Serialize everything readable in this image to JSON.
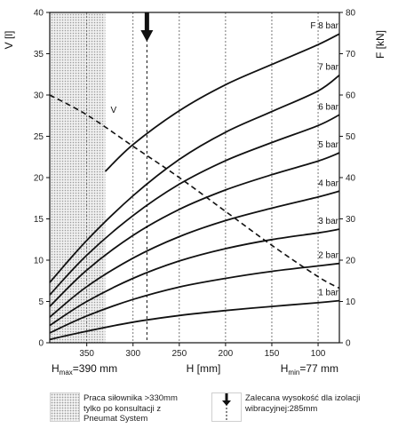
{
  "chart_data": {
    "type": "line",
    "x_reversed": true,
    "xlim": [
      390,
      77
    ],
    "x_ticks": [
      350,
      300,
      250,
      200,
      150,
      100
    ],
    "ylim_left": [
      0,
      40
    ],
    "y_ticks_left": [
      0,
      5,
      10,
      15,
      20,
      25,
      30,
      35,
      40
    ],
    "ylim_right": [
      0,
      80
    ],
    "y_ticks_right": [
      0,
      10,
      20,
      30,
      40,
      50,
      60,
      70,
      80
    ],
    "ylabel_left": "V [l]",
    "ylabel_right": "F [kN]",
    "xlabel": "H [mm]",
    "x_min_label": {
      "sym": "H",
      "sub": "max",
      "rest": "=390 mm"
    },
    "x_max_label": {
      "sym": "H",
      "sub": "min",
      "rest": "=77 mm"
    },
    "shaded_region_x": [
      390,
      330
    ],
    "recommended_height_mm": 285,
    "force_series": [
      {
        "name": "1 bar",
        "axis": "right",
        "x": [
          390,
          350,
          300,
          250,
          200,
          150,
          100,
          77
        ],
        "y": [
          0.8,
          2.8,
          5.0,
          6.6,
          7.8,
          8.8,
          9.7,
          10.2
        ]
      },
      {
        "name": "2 bar",
        "axis": "right",
        "x": [
          390,
          350,
          300,
          250,
          200,
          150,
          100,
          77
        ],
        "y": [
          2.4,
          6.5,
          10.5,
          13.5,
          15.6,
          17.3,
          18.6,
          19.2
        ]
      },
      {
        "name": "3 bar",
        "axis": "right",
        "x": [
          390,
          350,
          300,
          250,
          200,
          150,
          100,
          77
        ],
        "y": [
          4.2,
          10.0,
          15.6,
          19.8,
          22.8,
          25.0,
          26.6,
          27.5
        ]
      },
      {
        "name": "4 bar",
        "axis": "right",
        "x": [
          390,
          350,
          300,
          250,
          200,
          150,
          100,
          77
        ],
        "y": [
          6.2,
          13.6,
          20.5,
          25.7,
          29.6,
          32.6,
          35.3,
          36.7
        ]
      },
      {
        "name": "5 bar",
        "axis": "right",
        "x": [
          390,
          350,
          300,
          250,
          200,
          150,
          100,
          77
        ],
        "y": [
          8.8,
          17.6,
          26.0,
          32.3,
          37.0,
          40.7,
          44.0,
          46.0
        ]
      },
      {
        "name": "6 bar",
        "axis": "right",
        "x": [
          390,
          350,
          300,
          250,
          200,
          150,
          100,
          77
        ],
        "y": [
          11.6,
          21.2,
          30.8,
          38.4,
          44.1,
          48.5,
          52.6,
          55.2
        ]
      },
      {
        "name": "7 bar",
        "axis": "right",
        "x": [
          390,
          350,
          300,
          250,
          200,
          150,
          100,
          77
        ],
        "y": [
          14.6,
          24.8,
          35.6,
          44.4,
          51.0,
          56.0,
          61.0,
          64.8
        ]
      },
      {
        "name": "F 8 bar",
        "axis": "right",
        "x": [
          330,
          300,
          250,
          200,
          150,
          100,
          77
        ],
        "y": [
          41.5,
          48.0,
          56.2,
          62.5,
          67.4,
          72.2,
          74.8
        ]
      }
    ],
    "volume_series": {
      "name": "V",
      "axis": "left",
      "style": "dashed",
      "x": [
        390,
        350,
        300,
        250,
        200,
        150,
        100,
        77
      ],
      "y": [
        30.0,
        27.6,
        23.8,
        20.0,
        15.9,
        11.8,
        8.0,
        6.6
      ]
    }
  },
  "legend": {
    "hatch_text": [
      "Praca siłownika >330mm",
      "tylko po konsultacji z",
      "Pneumat System"
    ],
    "arrow_text": [
      "Zalecana wysokość dla izolacji",
      "wibracyjnej:285mm"
    ]
  },
  "colors": {
    "curve": "#111111",
    "shade": "#d9d9d9",
    "grid": "#555555"
  }
}
